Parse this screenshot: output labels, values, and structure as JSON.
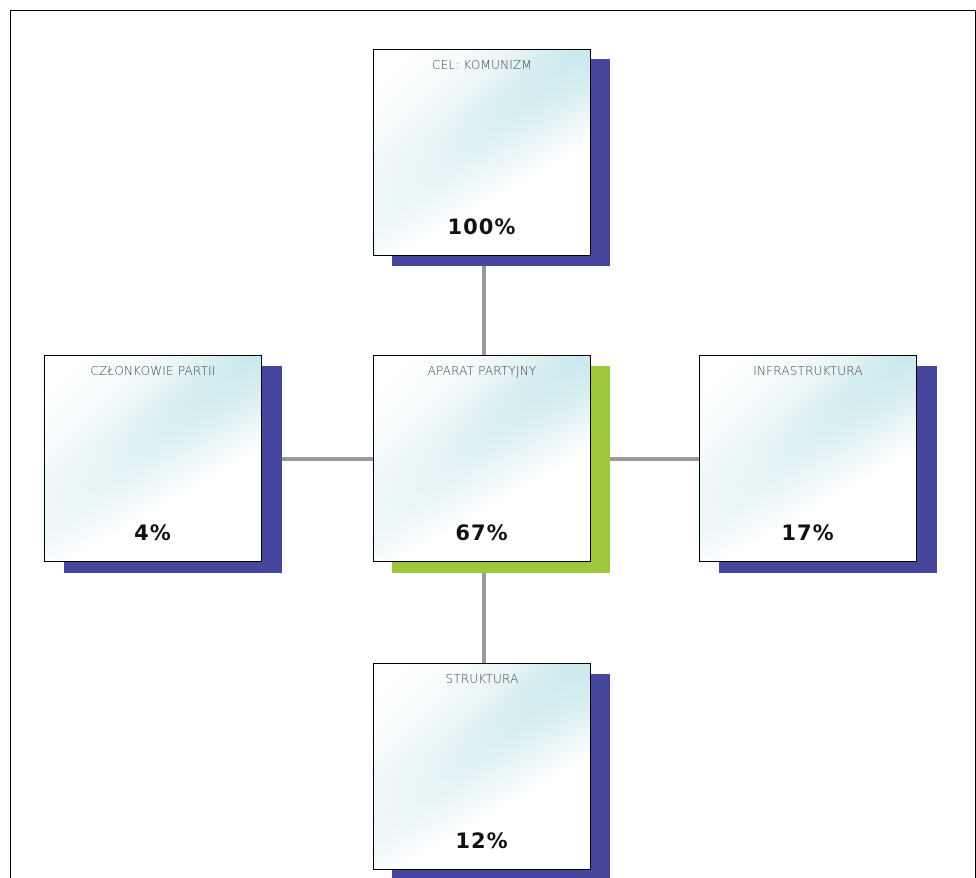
{
  "diagram": {
    "colors": {
      "shadow_default": "#46479c",
      "shadow_highlight": "#9fc73b",
      "connector": "#9a9a9a",
      "card_gradient": "#b8e0e6"
    },
    "nodes": {
      "top": {
        "title": "CEL: KOMUNIZM",
        "value": "100%"
      },
      "left": {
        "title": "CZŁONKOWIE PARTII",
        "value": "4%"
      },
      "center": {
        "title": "APARAT PARTYJNY",
        "value": "67%"
      },
      "right": {
        "title": "INFRASTRUKTURA",
        "value": "17%"
      },
      "bottom": {
        "title": "STRUKTURA",
        "value": "12%"
      }
    }
  }
}
